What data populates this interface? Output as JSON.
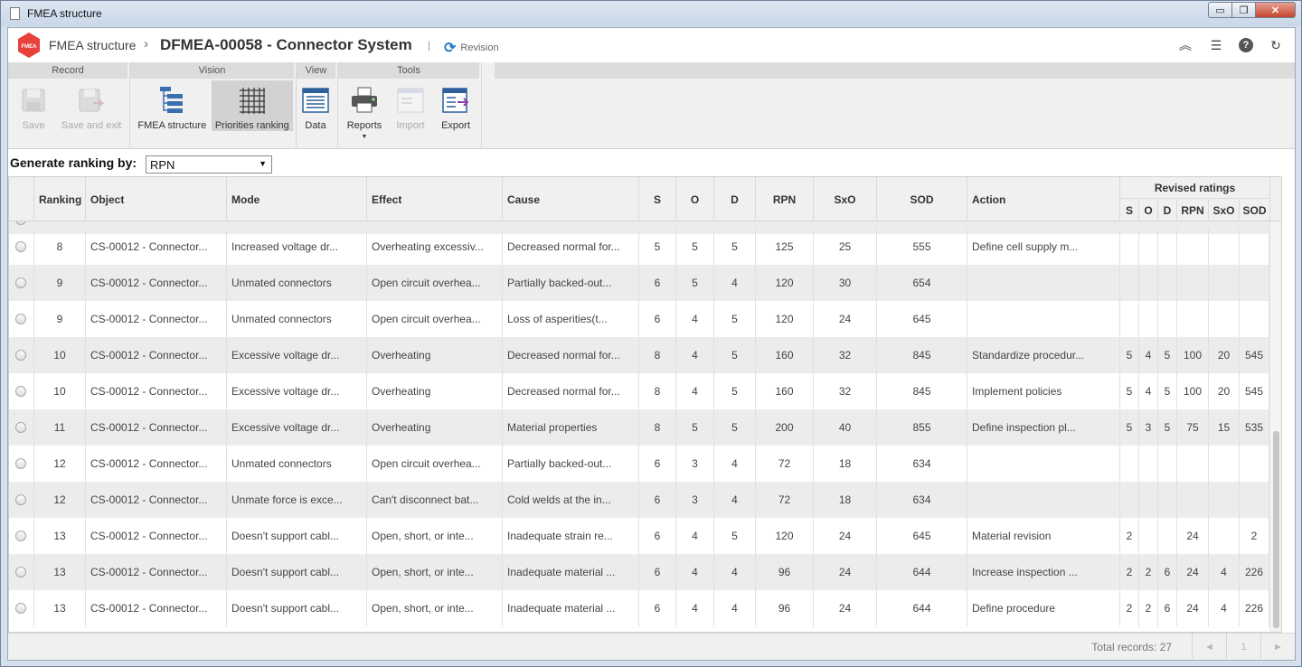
{
  "window": {
    "title": "FMEA structure",
    "controls": {
      "minimize": "▭",
      "restore": "❐",
      "close": "✕"
    }
  },
  "header": {
    "breadcrumb_root": "FMEA structure",
    "breadcrumb_sep": "›",
    "breadcrumb_current": "DFMEA-00058 - Connector System",
    "pipe": "|",
    "revision_label": "Revision",
    "logo_text": "FMEA",
    "icons": [
      "collapse-up-icon",
      "list-icon",
      "help-icon",
      "refresh-icon"
    ]
  },
  "ribbon": {
    "groups": {
      "record": "Record",
      "vision": "Vision",
      "view": "View",
      "tools": "Tools"
    },
    "items": {
      "save": "Save",
      "save_exit": "Save and exit",
      "fmea_structure": "FMEA structure",
      "priorities_ranking": "Priorities ranking",
      "data": "Data",
      "reports": "Reports",
      "import": "Import",
      "export": "Export"
    }
  },
  "ranking": {
    "label": "Generate ranking by:",
    "selected": "RPN"
  },
  "grid": {
    "columns": {
      "ranking": "Ranking",
      "object": "Object",
      "mode": "Mode",
      "effect": "Effect",
      "cause": "Cause",
      "s": "S",
      "o": "O",
      "d": "D",
      "rpn": "RPN",
      "sxo": "SxO",
      "sod": "SOD",
      "action": "Action",
      "revised": "Revised ratings"
    },
    "revised_columns": [
      "S",
      "O",
      "D",
      "RPN",
      "SxO",
      "SOD"
    ],
    "rows": [
      {
        "rank": "8",
        "object": "CS-00012 - Connector...",
        "mode": "Increased voltage dr...",
        "effect": "Overheating excessiv...",
        "cause": "Decreased normal for...",
        "s": "5",
        "o": "5",
        "d": "5",
        "rpn": "125",
        "sxo": "25",
        "sod": "555",
        "action": "Define cell supply m...",
        "rs": "",
        "ro": "",
        "rd": "",
        "rrpn": "",
        "rsxo": "",
        "rsod": ""
      },
      {
        "rank": "9",
        "object": "CS-00012 - Connector...",
        "mode": "Unmated connectors",
        "effect": "Open circuit overhea...",
        "cause": "Partially backed-out...",
        "s": "6",
        "o": "5",
        "d": "4",
        "rpn": "120",
        "sxo": "30",
        "sod": "654",
        "action": "",
        "rs": "",
        "ro": "",
        "rd": "",
        "rrpn": "",
        "rsxo": "",
        "rsod": ""
      },
      {
        "rank": "9",
        "object": "CS-00012 - Connector...",
        "mode": "Unmated connectors",
        "effect": "Open circuit overhea...",
        "cause": "Loss of asperities(t...",
        "s": "6",
        "o": "4",
        "d": "5",
        "rpn": "120",
        "sxo": "24",
        "sod": "645",
        "action": "",
        "rs": "",
        "ro": "",
        "rd": "",
        "rrpn": "",
        "rsxo": "",
        "rsod": ""
      },
      {
        "rank": "10",
        "object": "CS-00012 - Connector...",
        "mode": "Excessive voltage dr...",
        "effect": "Overheating",
        "cause": "Decreased normal for...",
        "s": "8",
        "o": "4",
        "d": "5",
        "rpn": "160",
        "sxo": "32",
        "sod": "845",
        "action": "Standardize procedur...",
        "rs": "5",
        "ro": "4",
        "rd": "5",
        "rrpn": "100",
        "rsxo": "20",
        "rsod": "545"
      },
      {
        "rank": "10",
        "object": "CS-00012 - Connector...",
        "mode": "Excessive voltage dr...",
        "effect": "Overheating",
        "cause": "Decreased normal for...",
        "s": "8",
        "o": "4",
        "d": "5",
        "rpn": "160",
        "sxo": "32",
        "sod": "845",
        "action": "Implement policies",
        "rs": "5",
        "ro": "4",
        "rd": "5",
        "rrpn": "100",
        "rsxo": "20",
        "rsod": "545"
      },
      {
        "rank": "11",
        "object": "CS-00012 - Connector...",
        "mode": "Excessive voltage dr...",
        "effect": "Overheating",
        "cause": "Material properties",
        "s": "8",
        "o": "5",
        "d": "5",
        "rpn": "200",
        "sxo": "40",
        "sod": "855",
        "action": "Define inspection pl...",
        "rs": "5",
        "ro": "3",
        "rd": "5",
        "rrpn": "75",
        "rsxo": "15",
        "rsod": "535"
      },
      {
        "rank": "12",
        "object": "CS-00012 - Connector...",
        "mode": "Unmated connectors",
        "effect": "Open circuit overhea...",
        "cause": "Partially backed-out...",
        "s": "6",
        "o": "3",
        "d": "4",
        "rpn": "72",
        "sxo": "18",
        "sod": "634",
        "action": "",
        "rs": "",
        "ro": "",
        "rd": "",
        "rrpn": "",
        "rsxo": "",
        "rsod": ""
      },
      {
        "rank": "12",
        "object": "CS-00012 - Connector...",
        "mode": "Unmate force is exce...",
        "effect": "Can't disconnect bat...",
        "cause": "Cold welds at the in...",
        "s": "6",
        "o": "3",
        "d": "4",
        "rpn": "72",
        "sxo": "18",
        "sod": "634",
        "action": "",
        "rs": "",
        "ro": "",
        "rd": "",
        "rrpn": "",
        "rsxo": "",
        "rsod": ""
      },
      {
        "rank": "13",
        "object": "CS-00012 - Connector...",
        "mode": "Doesn't support cabl...",
        "effect": "Open, short, or inte...",
        "cause": "Inadequate strain re...",
        "s": "6",
        "o": "4",
        "d": "5",
        "rpn": "120",
        "sxo": "24",
        "sod": "645",
        "action": "Material revision",
        "rs": "2",
        "ro": "",
        "rd": "",
        "rrpn": "24",
        "rsxo": "",
        "rsod": "2"
      },
      {
        "rank": "13",
        "object": "CS-00012 - Connector...",
        "mode": "Doesn't support cabl...",
        "effect": "Open, short, or inte...",
        "cause": "Inadequate material ...",
        "s": "6",
        "o": "4",
        "d": "4",
        "rpn": "96",
        "sxo": "24",
        "sod": "644",
        "action": "Increase inspection ...",
        "rs": "2",
        "ro": "2",
        "rd": "6",
        "rrpn": "24",
        "rsxo": "4",
        "rsod": "226"
      },
      {
        "rank": "13",
        "object": "CS-00012 - Connector...",
        "mode": "Doesn't support cabl...",
        "effect": "Open, short, or inte...",
        "cause": "Inadequate material ...",
        "s": "6",
        "o": "4",
        "d": "4",
        "rpn": "96",
        "sxo": "24",
        "sod": "644",
        "action": "Define procedure",
        "rs": "2",
        "ro": "2",
        "rd": "6",
        "rrpn": "24",
        "rsxo": "4",
        "rsod": "226"
      }
    ]
  },
  "footer": {
    "total_records": "Total records: 27",
    "pager": {
      "prev": "◄",
      "page": "1",
      "next": "►"
    }
  }
}
